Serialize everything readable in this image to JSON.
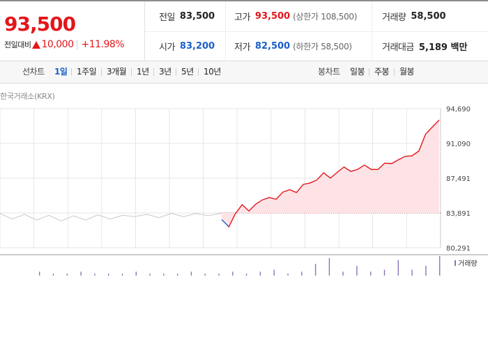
{
  "quote": {
    "price": "93,500",
    "change_label": "전일대비",
    "change_amount": "10,000",
    "change_percent": "+11.98%",
    "direction": "up"
  },
  "stats": {
    "row1": [
      {
        "label": "전일",
        "value": "83,500",
        "tone": "normal"
      },
      {
        "label": "고가",
        "value": "93,500",
        "tone": "up",
        "sub": "(상한가 108,500)"
      },
      {
        "label": "거래량",
        "value": "58,500",
        "tone": "normal"
      }
    ],
    "row2": [
      {
        "label": "시가",
        "value": "83,200",
        "tone": "down"
      },
      {
        "label": "저가",
        "value": "82,500",
        "tone": "down",
        "sub": "(하한가 58,500)"
      },
      {
        "label": "거래대금",
        "value": "5,189 백만",
        "tone": "normal"
      }
    ]
  },
  "tabs": {
    "line_title": "선차트",
    "line_periods": [
      "1일",
      "1주일",
      "3개월",
      "1년",
      "3년",
      "5년",
      "10년"
    ],
    "active_period": "1일",
    "candle_title": "봉차트",
    "candle_periods": [
      "일봉",
      "주봉",
      "월봉"
    ]
  },
  "chart": {
    "source": "한국거래소(KRX)",
    "volume_label": "거래량"
  },
  "colors": {
    "up": "#e3161b",
    "down": "#1a5fc8",
    "prev_day_line": "#c8c8c8",
    "area_fill": "#fde3e6",
    "grid": "#e6e6e6",
    "volume_bar": "#8a74b8"
  },
  "chart_data": {
    "type": "line",
    "y_ticks": [
      "94,690",
      "91,090",
      "87,491",
      "83,891",
      "80,291"
    ],
    "ylim": [
      80291,
      94690
    ],
    "reference_price": 83891,
    "previous_session_level": [
      83700,
      83400,
      83600,
      83300,
      83500,
      83200,
      83450,
      83300,
      83550,
      83400,
      83500,
      83650,
      83600,
      83550,
      83700,
      83650,
      83700,
      83750,
      83700
    ],
    "current_session": [
      83200,
      82500,
      83800,
      84600,
      84200,
      84800,
      85100,
      85600,
      85300,
      85900,
      86400,
      86000,
      86700,
      87100,
      87300,
      87900,
      87600,
      88100,
      88500,
      88300,
      88400,
      88700,
      88500,
      88400,
      88900,
      89100,
      89400,
      89600,
      89900,
      90300,
      91900,
      92900,
      93500
    ],
    "volume": [
      2,
      1,
      1,
      2,
      1,
      1,
      1,
      2,
      1,
      1,
      1,
      2,
      1,
      1,
      2,
      1,
      2,
      3,
      1,
      2,
      6,
      9,
      2,
      5,
      2,
      3,
      8,
      3,
      5,
      10
    ]
  }
}
